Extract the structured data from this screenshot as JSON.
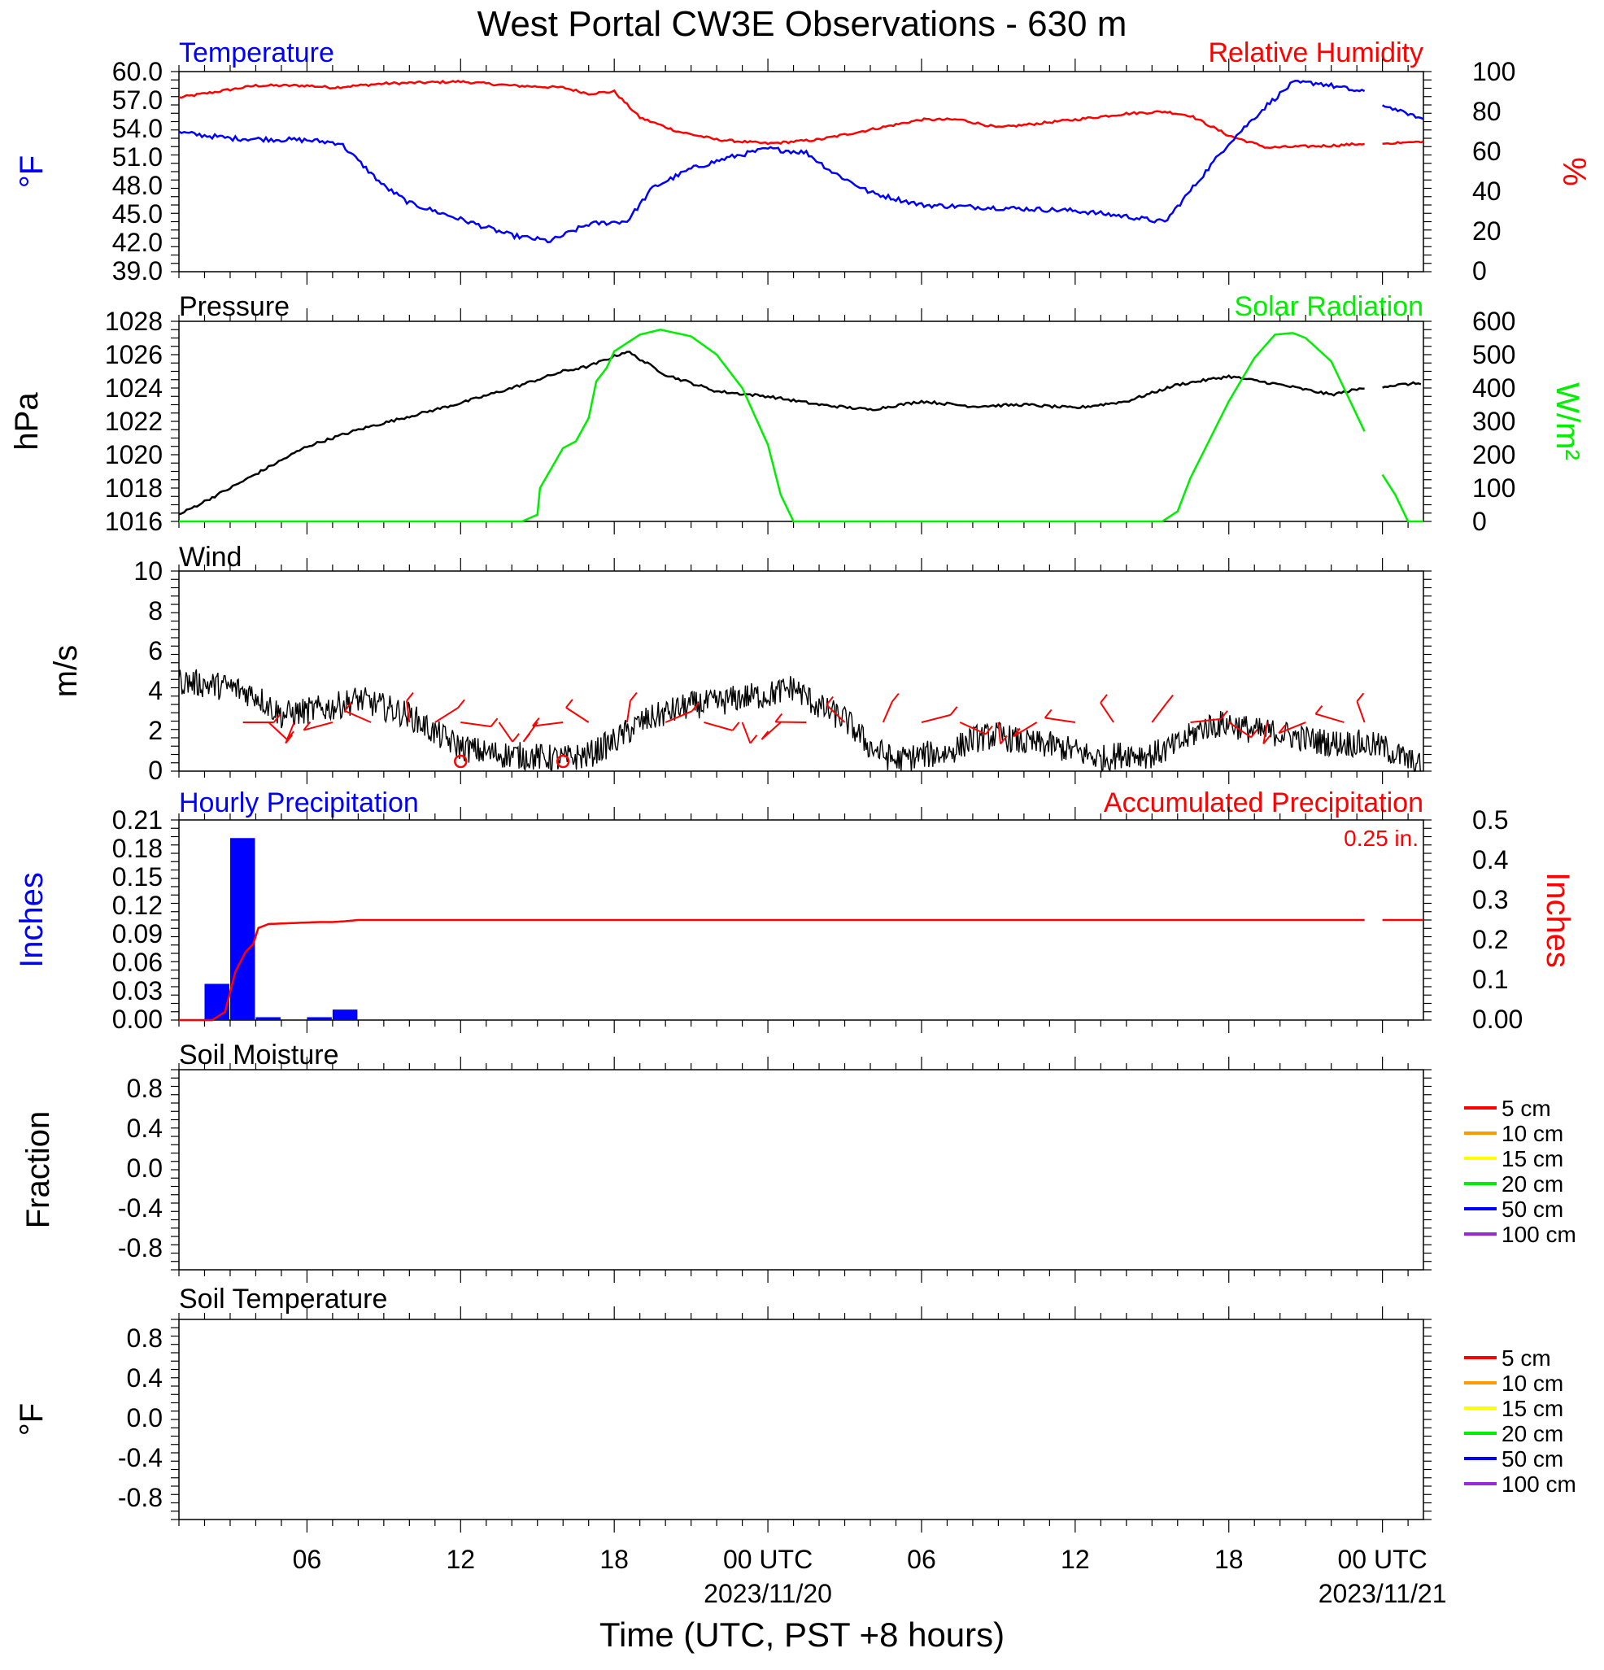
{
  "page": {
    "title": "West Portal CW3E Observations - 630 m",
    "xlabel": "Time (UTC, PST +8 hours)"
  },
  "colors": {
    "temperature": "#0000ff",
    "humidity": "#ff0000",
    "pressure": "#000000",
    "solar": "#00ee00",
    "wind": "#000000",
    "barb": "#ff0000",
    "hourly_bar": "#0000ff",
    "accumulated": "#ff0000",
    "soil_5": "#ff0000",
    "soil_10": "#ff9900",
    "soil_15": "#ffff00",
    "soil_20": "#00ee00",
    "soil_50": "#0000ff",
    "soil_100": "#9a27d8"
  },
  "time_axis": {
    "start_hour": 1,
    "end_hour": 49.6,
    "tick_labels": [
      {
        "hour": 6,
        "label": "06"
      },
      {
        "hour": 12,
        "label": "12"
      },
      {
        "hour": 18,
        "label": "18"
      },
      {
        "hour": 24,
        "label": "00 UTC",
        "date": "2023/11/20"
      },
      {
        "hour": 30,
        "label": "06"
      },
      {
        "hour": 36,
        "label": "12"
      },
      {
        "hour": 42,
        "label": "18"
      },
      {
        "hour": 48,
        "label": "00 UTC",
        "date": "2023/11/21"
      }
    ]
  },
  "panels": {
    "temp_rh": {
      "left_title": "Temperature",
      "right_title": "Relative Humidity",
      "left_unit": "°F",
      "right_unit": "%",
      "left_ticks": [
        "60.0",
        "57.0",
        "54.0",
        "51.0",
        "48.0",
        "45.0",
        "42.0",
        "39.0"
      ],
      "right_ticks": [
        "100",
        "80",
        "60",
        "40",
        "20",
        "0"
      ]
    },
    "pressure_solar": {
      "left_title": "Pressure",
      "right_title": "Solar Radiation",
      "left_unit": "hPa",
      "right_unit": "W/m²",
      "left_ticks": [
        "1028",
        "1026",
        "1024",
        "1022",
        "1020",
        "1018",
        "1016"
      ],
      "right_ticks": [
        "600",
        "500",
        "400",
        "300",
        "200",
        "100",
        "0"
      ]
    },
    "wind": {
      "left_title": "Wind",
      "left_unit": "m/s",
      "left_ticks": [
        "10",
        "8",
        "6",
        "4",
        "2",
        "0"
      ]
    },
    "precip": {
      "left_title": "Hourly Precipitation",
      "right_title": "Accumulated Precipitation",
      "total_label": "0.25 in.",
      "left_unit": "Inches",
      "right_unit": "Inches",
      "left_ticks": [
        "0.21",
        "0.18",
        "0.15",
        "0.12",
        "0.09",
        "0.06",
        "0.03",
        "0.00"
      ],
      "right_ticks": [
        "0.5",
        "0.4",
        "0.3",
        "0.2",
        "0.1",
        "0.00"
      ]
    },
    "soil_moisture": {
      "left_title": "Soil Moisture",
      "left_unit": "Fraction",
      "left_ticks": [
        "0.8",
        "0.4",
        "0.0",
        "-0.4",
        "-0.8"
      ],
      "legend": [
        "5 cm",
        "10 cm",
        "15 cm",
        "20 cm",
        "50 cm",
        "100 cm"
      ]
    },
    "soil_temperature": {
      "left_title": "Soil Temperature",
      "left_unit": "°F",
      "left_ticks": [
        "0.8",
        "0.4",
        "0.0",
        "-0.4",
        "-0.8"
      ],
      "legend": [
        "5 cm",
        "10 cm",
        "15 cm",
        "20 cm",
        "50 cm",
        "100 cm"
      ]
    }
  },
  "chart_data": [
    {
      "type": "line",
      "title": "Temperature",
      "ylabel": "°F",
      "ylim": [
        39,
        60
      ],
      "x_units": "hours since 2023/11/19 00 UTC",
      "series": [
        {
          "name": "Temperature",
          "x": [
            1,
            3,
            6,
            7.3,
            9,
            10,
            12,
            14,
            15.5,
            17,
            18.5,
            19.5,
            21,
            22.5,
            24,
            25.5,
            26.5,
            28,
            30,
            32,
            34,
            36,
            38,
            39.5,
            40.5,
            42,
            43.5,
            44.5,
            45.5,
            47.3
          ],
          "y": [
            53.6,
            53,
            52.8,
            52.5,
            48,
            46.2,
            44.5,
            42.8,
            42.2,
            44,
            44.3,
            47.8,
            49.8,
            51,
            51.9,
            51.5,
            49.5,
            47.3,
            46,
            45.8,
            45.6,
            45.4,
            44.8,
            44.2,
            47.5,
            52.5,
            56.5,
            58.8,
            58.8,
            57.8
          ]
        }
      ]
    },
    {
      "type": "line",
      "title": "Relative Humidity",
      "ylabel": "%",
      "ylim": [
        0,
        100
      ],
      "series": [
        {
          "name": "Relative Humidity",
          "x": [
            1,
            2.5,
            4,
            6,
            7,
            9,
            12,
            14,
            16,
            17,
            18,
            19,
            20.5,
            22,
            24,
            26,
            28,
            30,
            31.5,
            33,
            36,
            38,
            39.5,
            40.5,
            42,
            43.5,
            46,
            47.3
          ],
          "y": [
            87,
            90,
            93,
            93,
            92,
            94,
            95,
            93,
            92,
            89,
            90,
            77,
            70,
            66,
            64,
            66,
            71,
            76,
            76,
            72,
            76,
            79,
            80,
            78,
            68,
            62,
            63,
            64
          ]
        }
      ]
    },
    {
      "type": "line",
      "title": "Pressure",
      "ylabel": "hPa",
      "ylim": [
        1016,
        1028
      ],
      "series": [
        {
          "name": "Pressure",
          "x": [
            1,
            3,
            6,
            8,
            10,
            12,
            14,
            16,
            17,
            18.5,
            20,
            22,
            24,
            26,
            28,
            30,
            32,
            34,
            36,
            38,
            40,
            42,
            44,
            46,
            47.3,
            49.5
          ],
          "y": [
            1016.4,
            1018,
            1020.5,
            1021.5,
            1022.3,
            1023.1,
            1024,
            1025,
            1025.3,
            1026.2,
            1024.8,
            1023.8,
            1023.5,
            1023,
            1022.7,
            1023.2,
            1022.9,
            1023,
            1022.8,
            1023.2,
            1024.2,
            1024.7,
            1024.2,
            1023.6,
            1024,
            1024.3
          ]
        }
      ]
    },
    {
      "type": "line",
      "title": "Solar Radiation",
      "ylabel": "W/m²",
      "ylim": [
        0,
        600
      ],
      "series": [
        {
          "name": "Solar Radiation",
          "x": [
            1,
            14.4,
            15,
            15.1,
            16,
            16.5,
            17,
            17.3,
            17.7,
            18,
            19,
            19.8,
            21,
            22,
            23,
            24,
            24.5,
            25,
            35,
            39.4,
            40,
            40.5,
            42,
            43,
            43.8,
            44.5,
            45,
            46,
            47.3
          ],
          "y": [
            0,
            0,
            20,
            100,
            220,
            240,
            310,
            420,
            460,
            510,
            560,
            575,
            555,
            500,
            400,
            230,
            80,
            0,
            0,
            0,
            30,
            130,
            360,
            490,
            560,
            565,
            550,
            480,
            270
          ]
        }
      ]
    },
    {
      "type": "line",
      "title": "Wind",
      "ylabel": "m/s",
      "ylim": [
        0,
        10
      ],
      "series": [
        {
          "name": "Wind",
          "x": [
            1,
            3,
            4,
            5,
            7,
            8,
            9,
            10,
            11,
            12,
            13,
            14,
            15,
            16,
            17,
            18,
            19,
            20,
            21,
            22,
            23,
            24,
            25,
            26,
            27,
            28,
            29,
            30,
            31,
            32,
            33,
            34,
            35,
            36,
            37,
            38,
            39,
            40,
            41,
            42,
            43,
            44,
            45,
            46,
            47,
            48,
            49.5
          ],
          "y": [
            4.5,
            4.2,
            3.8,
            2.8,
            3.2,
            3.6,
            3.2,
            2.8,
            1.9,
            1.2,
            0.9,
            0.8,
            0.7,
            0.6,
            0.8,
            1.5,
            2.4,
            2.9,
            3.3,
            3.4,
            3.7,
            3.8,
            4.2,
            3.2,
            2.6,
            1.2,
            0.5,
            0.8,
            0.9,
            1.6,
            1.8,
            1.4,
            1.3,
            1.0,
            0.6,
            0.9,
            0.8,
            1.3,
            2.2,
            2.4,
            2.0,
            1.9,
            1.6,
            1.4,
            1.4,
            1.2,
            0.2
          ]
        }
      ]
    },
    {
      "type": "bar",
      "title": "Hourly Precipitation",
      "ylabel": "Inches",
      "ylim": [
        0,
        0.21
      ],
      "x": [
        2.5,
        3.5,
        4.5,
        6.5,
        7.5
      ],
      "values": [
        0.038,
        0.191,
        0.003,
        0.003,
        0.011
      ]
    },
    {
      "type": "line",
      "title": "Accumulated Precipitation",
      "ylabel": "Inches",
      "ylim": [
        0,
        0.5
      ],
      "series": [
        {
          "name": "Accumulated Precipitation",
          "x": [
            1,
            2.3,
            2.8,
            3.2,
            3.6,
            3.9,
            4.1,
            4.5,
            6.5,
            7,
            7.5,
            8,
            47.3
          ],
          "y": [
            0,
            0,
            0.02,
            0.12,
            0.17,
            0.19,
            0.23,
            0.24,
            0.245,
            0.245,
            0.247,
            0.25,
            0.25
          ]
        }
      ]
    },
    {
      "type": "line",
      "title": "Soil Moisture",
      "ylabel": "Fraction",
      "ylim": [
        -1,
        1
      ],
      "series": []
    },
    {
      "type": "line",
      "title": "Soil Temperature",
      "ylabel": "°F",
      "ylim": [
        -1,
        1
      ],
      "series": []
    }
  ]
}
